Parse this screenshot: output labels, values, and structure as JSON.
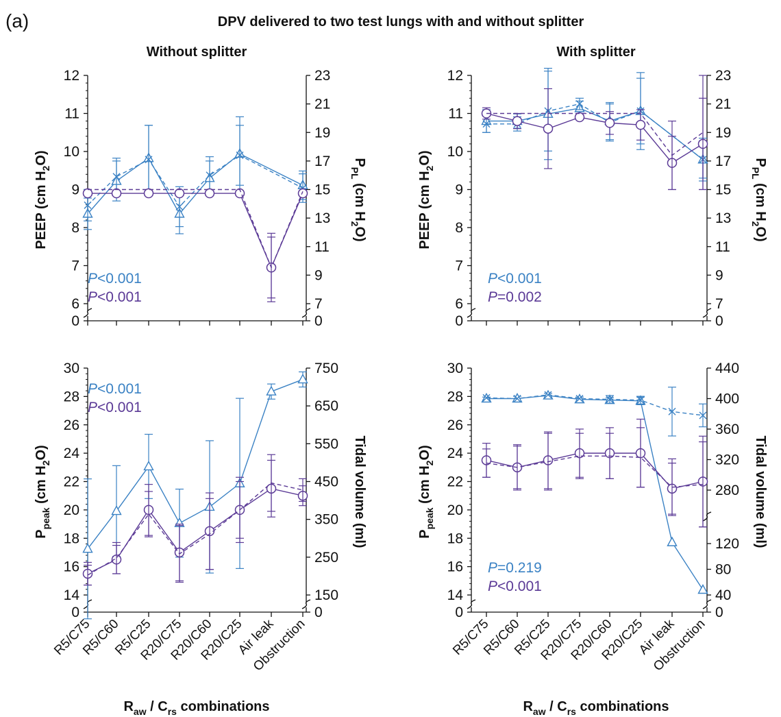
{
  "figure": {
    "panel_label": "(a)",
    "title": "DPV delivered to two test lungs with and without splitter",
    "xlabel_main": "R",
    "xlabel_sub1": "aw",
    "xlabel_mid": " / C",
    "xlabel_sub2": "rs",
    "xlabel_end": " combinations"
  },
  "colors": {
    "blue": "#3b82c4",
    "purple": "#5b3a96"
  },
  "chart_data": [
    {
      "id": "tl",
      "type": "line",
      "title": "Without splitter",
      "categories": [
        "R5/C75",
        "R5/C60",
        "R5/C25",
        "R20/C75",
        "R20/C60",
        "R20/C25",
        "Air leak",
        "Obstruction"
      ],
      "ylabel": "PEEP (cm H2O)",
      "ylabel_parts": [
        "PEEP (cm H",
        "2",
        "O)"
      ],
      "y2label_parts": [
        "P",
        "PL",
        " (cm H",
        "2",
        "O)"
      ],
      "ylim": [
        6,
        12
      ],
      "yticks": [
        6,
        7,
        8,
        9,
        10,
        11,
        12
      ],
      "ybreak_label": "0",
      "y2lim": [
        7,
        23
      ],
      "y2ticks": [
        7,
        9,
        11,
        13,
        15,
        17,
        19,
        21,
        23
      ],
      "y2break_label": "0",
      "p_blue": {
        "prefix": "P",
        "text": "<0.001"
      },
      "p_purple": {
        "prefix": "P",
        "text": "<0.001"
      },
      "series": [
        {
          "color": "blue",
          "marker": "triangle",
          "dash": false,
          "axis": "y2",
          "values": [
            13.3,
            15.6,
            17.2,
            13.3,
            15.8,
            17.5,
            null,
            15.3
          ],
          "err": [
            1.1,
            1.4,
            2.3,
            1.4,
            1.2,
            2.6,
            null,
            1.0
          ]
        },
        {
          "color": "blue",
          "marker": "x",
          "dash": true,
          "axis": "y2",
          "values": [
            13.9,
            15.9,
            17.1,
            13.8,
            16.0,
            17.4,
            null,
            15.1
          ],
          "err": [
            1.1,
            1.3,
            2.4,
            1.4,
            1.3,
            2.1,
            null,
            1.0
          ]
        },
        {
          "color": "purple",
          "marker": "circle",
          "dash": false,
          "axis": "y",
          "values": [
            8.9,
            8.9,
            8.9,
            8.9,
            8.9,
            8.9,
            6.95,
            8.9
          ],
          "err": [
            0,
            0,
            0,
            0,
            0,
            0,
            0.9,
            0
          ]
        },
        {
          "color": "purple",
          "marker": "none",
          "dash": true,
          "axis": "y",
          "values": [
            9.0,
            9.0,
            9.0,
            9.0,
            9.0,
            9.0,
            6.95,
            8.95
          ],
          "err": [
            0,
            0,
            0,
            0,
            0,
            0,
            0.8,
            0
          ]
        }
      ]
    },
    {
      "id": "tr",
      "type": "line",
      "title": "With splitter",
      "categories": [
        "R5/C75",
        "R5/C60",
        "R5/C25",
        "R20/C75",
        "R20/C60",
        "R20/C25",
        "Air leak",
        "Obstruction"
      ],
      "ylabel": "PEEP (cm H2O)",
      "ylabel_parts": [
        "PEEP (cm H",
        "2",
        "O)"
      ],
      "y2label_parts": [
        "P",
        "PL",
        " (cm H",
        "2",
        "O)"
      ],
      "ylim": [
        6,
        12
      ],
      "yticks": [
        6,
        7,
        8,
        9,
        10,
        11,
        12
      ],
      "ybreak_label": "0",
      "y2lim": [
        7,
        23
      ],
      "y2ticks": [
        7,
        9,
        11,
        13,
        15,
        17,
        19,
        21,
        23
      ],
      "y2break_label": "0",
      "p_blue": {
        "prefix": "P",
        "text": "<0.001"
      },
      "p_purple": {
        "prefix": "P",
        "text": "=0.002"
      },
      "series": [
        {
          "color": "blue",
          "marker": "triangle",
          "dash": false,
          "axis": "y2",
          "values": [
            19.8,
            19.8,
            20.3,
            20.7,
            19.8,
            20.5,
            null,
            17.1
          ],
          "err": [
            0.8,
            0.5,
            3.2,
            0.5,
            1.3,
            2.7,
            null,
            1.3
          ]
        },
        {
          "color": "blue",
          "marker": "x",
          "dash": true,
          "axis": "y2",
          "values": [
            19.6,
            19.6,
            20.5,
            21.0,
            19.7,
            20.5,
            null,
            17.1
          ],
          "err": [
            0.6,
            0.5,
            2.8,
            0.4,
            1.3,
            2.3,
            null,
            1.5
          ]
        },
        {
          "color": "purple",
          "marker": "circle",
          "dash": false,
          "axis": "y",
          "values": [
            11.0,
            10.8,
            10.6,
            10.9,
            10.75,
            10.7,
            9.7,
            10.2
          ],
          "err": [
            0.15,
            0.2,
            1.05,
            0,
            0.3,
            0.4,
            0.7,
            1.2
          ]
        },
        {
          "color": "purple",
          "marker": "none",
          "dash": true,
          "axis": "y",
          "values": [
            11.0,
            11.0,
            11.0,
            11.0,
            11.0,
            11.0,
            9.9,
            10.5
          ],
          "err": [
            0,
            0,
            0,
            0,
            0,
            0,
            0.9,
            1.5
          ]
        }
      ]
    },
    {
      "id": "bl",
      "type": "line",
      "categories": [
        "R5/C75",
        "R5/C60",
        "R5/C25",
        "R20/C75",
        "R20/C60",
        "R20/C25",
        "Air leak",
        "Obstruction"
      ],
      "ylabel_parts": [
        "P",
        "peak",
        " (cm H",
        "2",
        "O)"
      ],
      "y2label_parts": [
        "Tidal volume (ml)"
      ],
      "ylim": [
        14,
        30
      ],
      "yticks": [
        14,
        16,
        18,
        20,
        22,
        24,
        26,
        28,
        30
      ],
      "ybreak_label": "0",
      "y2lim": [
        150,
        750
      ],
      "y2ticks": [
        150,
        250,
        350,
        450,
        550,
        650,
        750
      ],
      "y2break_label": "0",
      "p_blue": {
        "prefix": "P",
        "text": "<0.001"
      },
      "p_purple": {
        "prefix": "P",
        "text": "<0.001"
      },
      "series": [
        {
          "color": "blue",
          "marker": "triangle",
          "dash": false,
          "axis": "y2",
          "values": [
            272,
            372,
            490,
            340,
            383,
            445,
            688,
            720
          ],
          "err": [
            185,
            120,
            85,
            90,
            175,
            225,
            20,
            20
          ]
        },
        {
          "color": "blue",
          "marker": "x",
          "dash": true,
          "axis": "y2",
          "values": null,
          "err": null
        },
        {
          "color": "purple",
          "marker": "circle",
          "dash": false,
          "axis": "y",
          "values": [
            15.5,
            16.5,
            20.0,
            17.0,
            18.5,
            20.0,
            21.5,
            21.0
          ],
          "err": [
            0.8,
            1.0,
            1.8,
            2.0,
            2.7,
            2.3,
            2.0,
            0.7
          ]
        },
        {
          "color": "purple",
          "marker": "none",
          "dash": true,
          "axis": "y",
          "values": [
            15.4,
            16.6,
            19.7,
            16.9,
            18.3,
            20.0,
            21.9,
            21.4
          ],
          "err": [
            0.7,
            1.1,
            1.6,
            2.0,
            2.5,
            2.0,
            2.0,
            0.8
          ]
        }
      ]
    },
    {
      "id": "br",
      "type": "line",
      "categories": [
        "R5/C75",
        "R5/C60",
        "R5/C25",
        "R20/C75",
        "R20/C60",
        "R20/C25",
        "Air leak",
        "Obstruction"
      ],
      "ylabel_parts": [
        "P",
        "peak",
        " (cm H",
        "2",
        "O)"
      ],
      "y2label_parts": [
        "Tidal volume (ml)"
      ],
      "ylim": [
        14,
        30
      ],
      "yticks": [
        14,
        16,
        18,
        20,
        22,
        24,
        26,
        28,
        30
      ],
      "ybreak_label": "0",
      "y2ticks_upper": [
        280,
        320,
        360,
        400,
        440
      ],
      "y2ticks_lower": [
        40,
        80,
        120
      ],
      "y2break_label": "0",
      "p_blue": {
        "prefix": "P",
        "text": "=0.219"
      },
      "p_purple": {
        "prefix": "P",
        "text": "<0.001"
      },
      "series": [
        {
          "color": "blue",
          "marker": "triangle",
          "dash": false,
          "axis": "y2",
          "values": [
            400,
            400,
            404,
            399,
            398,
            397,
            122,
            48
          ],
          "err": [
            2,
            3,
            3,
            3,
            3,
            5,
            0,
            0
          ]
        },
        {
          "color": "blue",
          "marker": "x",
          "dash": true,
          "axis": "y2",
          "values": [
            401,
            400,
            405,
            400,
            399,
            398,
            383,
            378
          ],
          "err": [
            0,
            0,
            0,
            0,
            5,
            5,
            32,
            15
          ]
        },
        {
          "color": "purple",
          "marker": "circle",
          "dash": false,
          "axis": "y",
          "values": [
            23.5,
            23.0,
            23.5,
            24.0,
            24.0,
            24.0,
            21.5,
            22.0
          ],
          "err": [
            1.2,
            1.5,
            2.0,
            1.7,
            1.8,
            2.4,
            1.8,
            3.2
          ]
        },
        {
          "color": "purple",
          "marker": "none",
          "dash": true,
          "axis": "y",
          "values": [
            23.3,
            23.0,
            23.4,
            23.8,
            23.8,
            23.7,
            21.6,
            21.8
          ],
          "err": [
            1.0,
            1.6,
            2.0,
            1.6,
            1.6,
            2.1,
            2.0,
            3.0
          ]
        }
      ]
    }
  ]
}
